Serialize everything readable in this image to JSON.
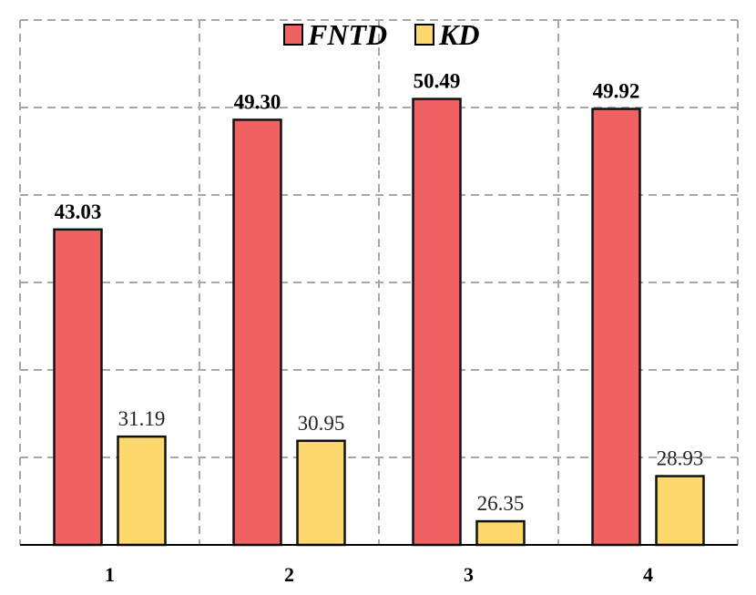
{
  "chart_data": {
    "type": "bar",
    "categories": [
      "1",
      "2",
      "3",
      "4"
    ],
    "series": [
      {
        "name": "FNTD",
        "values": [
          43.03,
          49.3,
          50.49,
          49.92
        ],
        "labels": [
          "43.03",
          "49.30",
          "50.49",
          "49.92"
        ],
        "color": "#f06262",
        "label_style": "bold"
      },
      {
        "name": "KD",
        "values": [
          31.19,
          30.95,
          26.35,
          28.93
        ],
        "labels": [
          "31.19",
          "30.95",
          "26.35",
          "28.93"
        ],
        "color": "#fdd86c",
        "label_style": "normal"
      }
    ],
    "ylim": [
      25,
      55
    ],
    "grid": true,
    "legend_position": "top-center",
    "xlabel": "",
    "ylabel": "",
    "title": ""
  }
}
